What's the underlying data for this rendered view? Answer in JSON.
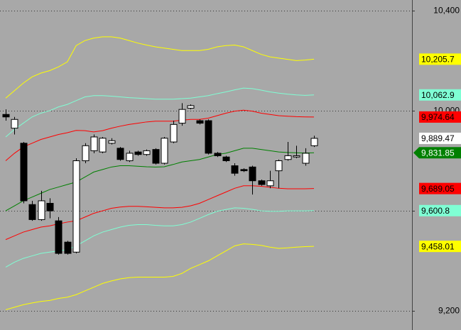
{
  "chart_data": {
    "type": "candlestick",
    "categories": [
      null,
      null,
      null,
      null,
      null,
      null,
      null,
      null,
      null,
      null,
      null,
      null,
      null,
      null,
      null,
      null,
      null,
      null,
      null,
      null,
      null,
      null,
      null,
      null,
      null,
      null,
      null,
      null,
      null,
      null,
      null,
      null,
      null,
      null,
      null,
      null
    ],
    "candles": {
      "color_up": "#ffffff",
      "color_down": "#000000",
      "open": [
        9985,
        9930,
        9870,
        9625,
        9565,
        9630,
        9560,
        9475,
        9435,
        9800,
        9840,
        9835,
        9870,
        9850,
        9800,
        9835,
        9825,
        9845,
        9790,
        9875,
        9950,
        10010,
        9960,
        9960,
        9830,
        9815,
        9780,
        9765,
        9775,
        9720,
        9700,
        9760,
        9805,
        9815,
        9790,
        9860
      ],
      "high": [
        10005,
        9975,
        9875,
        9640,
        9680,
        9650,
        9575,
        9480,
        9810,
        9870,
        9905,
        9895,
        9890,
        9855,
        9840,
        9840,
        9845,
        9850,
        9895,
        9960,
        10030,
        10025,
        9965,
        9965,
        9835,
        9820,
        9790,
        9770,
        9780,
        9725,
        9760,
        9805,
        9875,
        9860,
        9850,
        9900
      ],
      "low": [
        9960,
        9905,
        9630,
        9560,
        9560,
        9570,
        9425,
        9425,
        9430,
        9790,
        9830,
        9830,
        9865,
        9800,
        9795,
        9820,
        9820,
        9785,
        9785,
        9870,
        9940,
        10005,
        9945,
        9825,
        9815,
        9795,
        9740,
        9755,
        9665,
        9700,
        9690,
        9690,
        9800,
        9810,
        9780,
        9855
      ],
      "close": [
        9975,
        9965,
        9640,
        9565,
        9640,
        9600,
        9430,
        9430,
        9800,
        9860,
        9895,
        9890,
        9880,
        9805,
        9830,
        9825,
        9840,
        9790,
        9890,
        9945,
        10005,
        10020,
        9950,
        9830,
        9820,
        9800,
        9750,
        9760,
        9720,
        9705,
        9720,
        9800,
        9820,
        9820,
        9830,
        9889.47
      ],
      "close_label": "9,889.47"
    },
    "series": [
      {
        "color": "#ffff00",
        "last_label": "10,205.7",
        "values": [
          10050,
          10080,
          10110,
          10135,
          10150,
          10160,
          10175,
          10195,
          10260,
          10280,
          10290,
          10295,
          10295,
          10290,
          10280,
          10270,
          10262,
          10255,
          10250,
          10245,
          10240,
          10240,
          10240,
          10245,
          10255,
          10260,
          10262,
          10255,
          10240,
          10225,
          10215,
          10210,
          10205,
          10200,
          10202,
          10205.7
        ]
      },
      {
        "color": "#7fffd4",
        "last_label": "10,062.9",
        "values": [
          9895,
          9925,
          9950,
          9975,
          9990,
          10000,
          10015,
          10025,
          10040,
          10055,
          10060,
          10060,
          10058,
          10055,
          10052,
          10050,
          10048,
          10046,
          10046,
          10046,
          10048,
          10050,
          10055,
          10060,
          10068,
          10075,
          10083,
          10090,
          10088,
          10082,
          10075,
          10070,
          10066,
          10063,
          10061,
          10062.9
        ]
      },
      {
        "color": "#ff0000",
        "last_label": "9,974.64",
        "values": [
          9800,
          9830,
          9855,
          9870,
          9885,
          9895,
          9905,
          9912,
          9921,
          9920,
          9915,
          9920,
          9930,
          9938,
          9945,
          9950,
          9955,
          9958,
          9958,
          9958,
          9962,
          9965,
          9965,
          9970,
          9980,
          9990,
          9998,
          10002,
          9998,
          9990,
          9985,
          9980,
          9978,
          9976,
          9975,
          9974.64
        ]
      },
      {
        "color": "#008000",
        "last_label": "9,831.85",
        "label_color": "#ffffff",
        "arrow": true,
        "values": [
          9600,
          9620,
          9640,
          9655,
          9670,
          9685,
          9695,
          9705,
          9715,
          9735,
          9755,
          9765,
          9775,
          9780,
          9780,
          9778,
          9776,
          9775,
          9776,
          9785,
          9795,
          9800,
          9805,
          9815,
          9825,
          9830,
          9840,
          9850,
          9850,
          9845,
          9840,
          9835,
          9833,
          9832,
          9831,
          9831.85
        ]
      },
      {
        "color": "#ff0000",
        "last_label": "9,689.05",
        "values": [
          9485,
          9500,
          9515,
          9525,
          9535,
          9540,
          9548,
          9555,
          9560,
          9575,
          9590,
          9600,
          9610,
          9615,
          9618,
          9618,
          9616,
          9614,
          9612,
          9612,
          9614,
          9620,
          9630,
          9645,
          9660,
          9675,
          9690,
          9700,
          9700,
          9698,
          9694,
          9690,
          9688,
          9688,
          9688,
          9689.05
        ]
      },
      {
        "color": "#7fffd4",
        "last_label": "9,600.8",
        "values": [
          9375,
          9395,
          9410,
          9420,
          9430,
          9435,
          9440,
          9445,
          9460,
          9480,
          9500,
          9515,
          9525,
          9535,
          9542,
          9545,
          9545,
          9542,
          9540,
          9540,
          9545,
          9555,
          9570,
          9585,
          9598,
          9605,
          9612,
          9610,
          9606,
          9600,
          9598,
          9598,
          9600,
          9600,
          9600,
          9600.8
        ]
      },
      {
        "color": "#ffff00",
        "last_label": "9,458.01",
        "values": [
          9205,
          9215,
          9225,
          9232,
          9238,
          9242,
          9250,
          9255,
          9265,
          9280,
          9295,
          9310,
          9320,
          9328,
          9333,
          9335,
          9335,
          9335,
          9335,
          9338,
          9350,
          9370,
          9385,
          9400,
          9420,
          9440,
          9460,
          9468,
          9466,
          9462,
          9455,
          9450,
          9452,
          9455,
          9457,
          9458.01
        ]
      }
    ],
    "ylim": [
      9124,
      10442
    ],
    "yticks": [
      {
        "value": 10400,
        "label": "10,400"
      },
      {
        "value": 10000,
        "label": "10,000"
      },
      {
        "value": 9600,
        "label": null
      },
      {
        "value": 9200,
        "label": "9,200"
      }
    ],
    "grid": true
  }
}
